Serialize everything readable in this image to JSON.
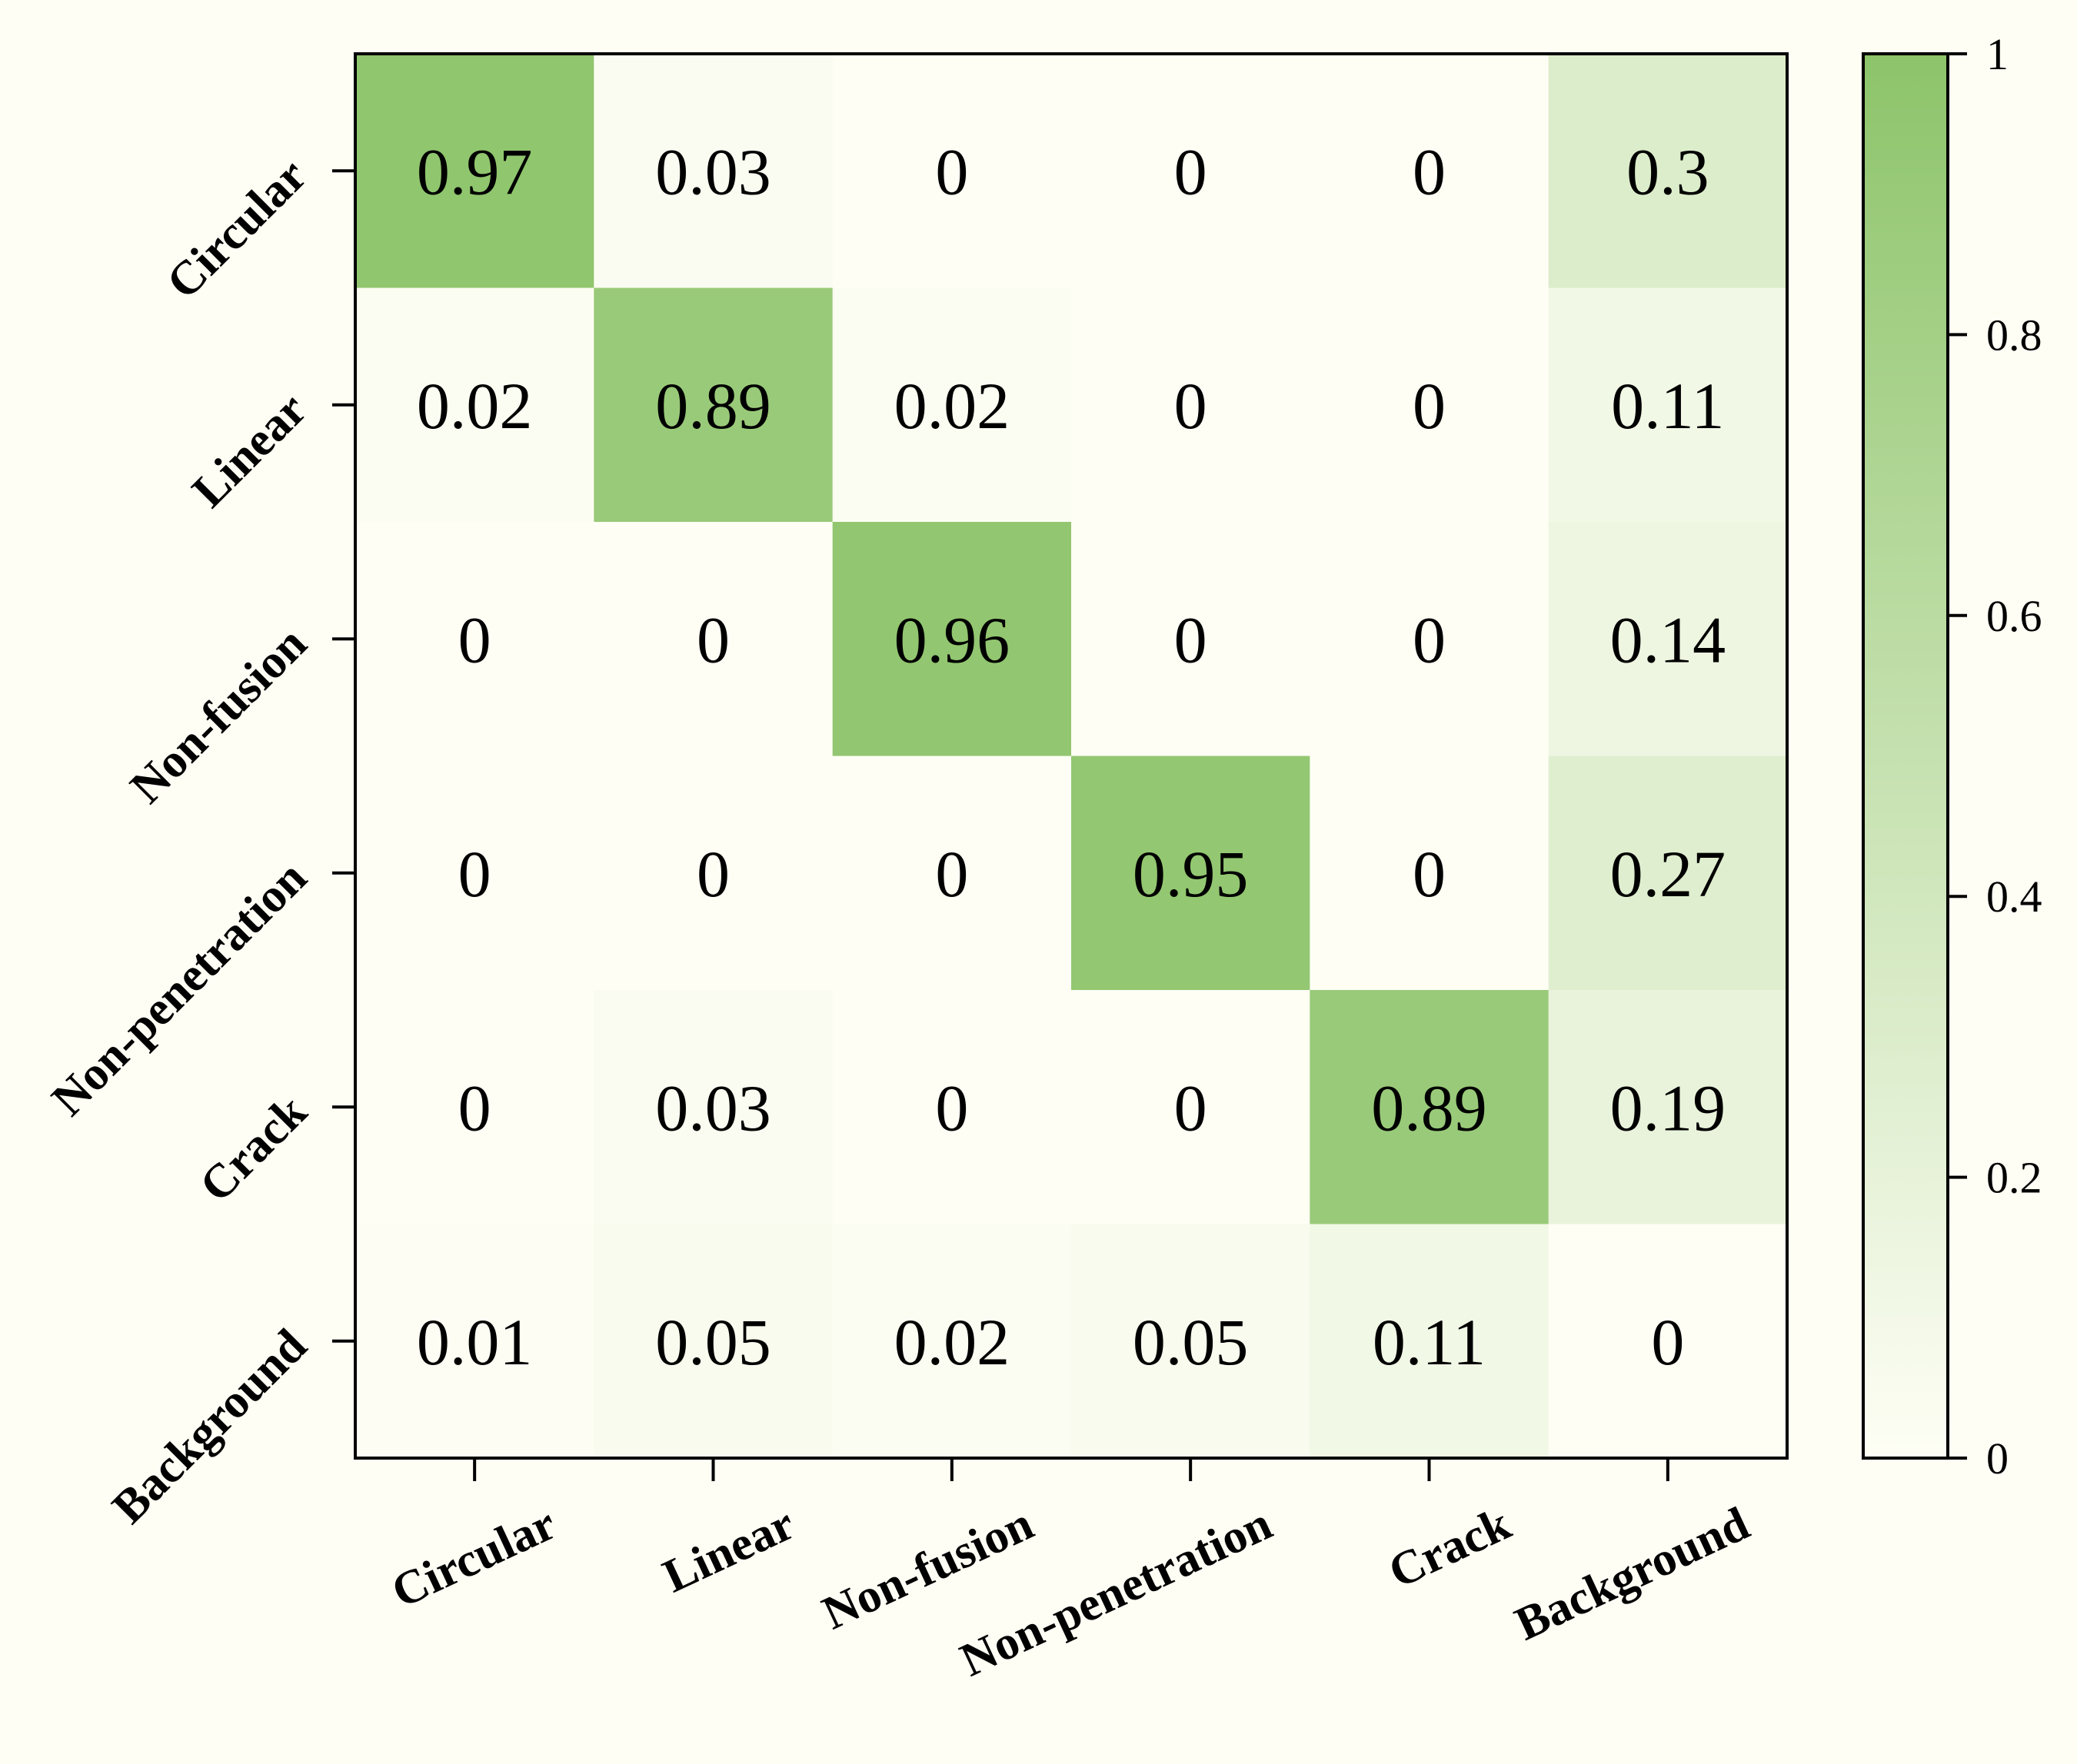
{
  "chart_data": {
    "type": "heatmap",
    "title": "",
    "xlabel": "",
    "ylabel": "",
    "rows": [
      "Circular",
      "Linear",
      "Non-fusion",
      "Non-penetration",
      "Crack",
      "Background"
    ],
    "columns": [
      "Circular",
      "Linear",
      "Non-fusion",
      "Non-penetration",
      "Crack",
      "Background"
    ],
    "values": [
      [
        0.97,
        0.03,
        0,
        0,
        0,
        0.3
      ],
      [
        0.02,
        0.89,
        0.02,
        0,
        0,
        0.11
      ],
      [
        0,
        0,
        0.96,
        0,
        0,
        0.14
      ],
      [
        0,
        0,
        0,
        0.95,
        0,
        0.27
      ],
      [
        0,
        0.03,
        0,
        0,
        0.89,
        0.19
      ],
      [
        0.01,
        0.05,
        0.02,
        0.05,
        0.11,
        0
      ]
    ],
    "value_labels": [
      [
        "0.97",
        "0.03",
        "0",
        "0",
        "0",
        "0.3"
      ],
      [
        "0.02",
        "0.89",
        "0.02",
        "0",
        "0",
        "0.11"
      ],
      [
        "0",
        "0",
        "0.96",
        "0",
        "0",
        "0.14"
      ],
      [
        "0",
        "0",
        "0",
        "0.95",
        "0",
        "0.27"
      ],
      [
        "0",
        "0.03",
        "0",
        "0",
        "0.89",
        "0.19"
      ],
      [
        "0.01",
        "0.05",
        "0.02",
        "0.05",
        "0.11",
        "0"
      ]
    ],
    "colorbar": {
      "range": [
        0,
        1
      ],
      "ticks": [
        "0",
        "0.2",
        "0.4",
        "0.6",
        "0.8",
        "1"
      ],
      "color_low": "#fefef5",
      "color_high": "#8dc46a"
    }
  },
  "colors": {
    "background": "#fefef5",
    "diag_strong": "#8dc46a",
    "axis": "#000000"
  }
}
